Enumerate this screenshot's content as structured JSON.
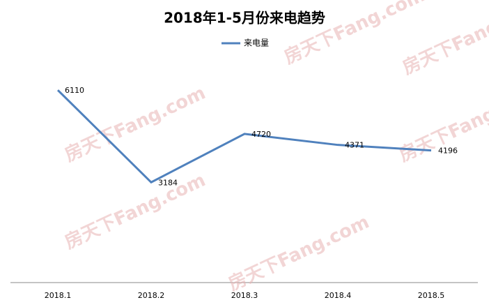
{
  "chart_data": {
    "type": "line",
    "title": "2018年1-5月份来电趋势",
    "categories": [
      "2018.1",
      "2018.2",
      "2018.3",
      "2018.4",
      "2018.5"
    ],
    "series": [
      {
        "name": "来电量",
        "color": "#4f81bd",
        "values": [
          6110,
          3184,
          4720,
          4371,
          4196
        ]
      }
    ],
    "ylim": [
      0,
      7000
    ],
    "watermark": "房天下Fang.com"
  }
}
